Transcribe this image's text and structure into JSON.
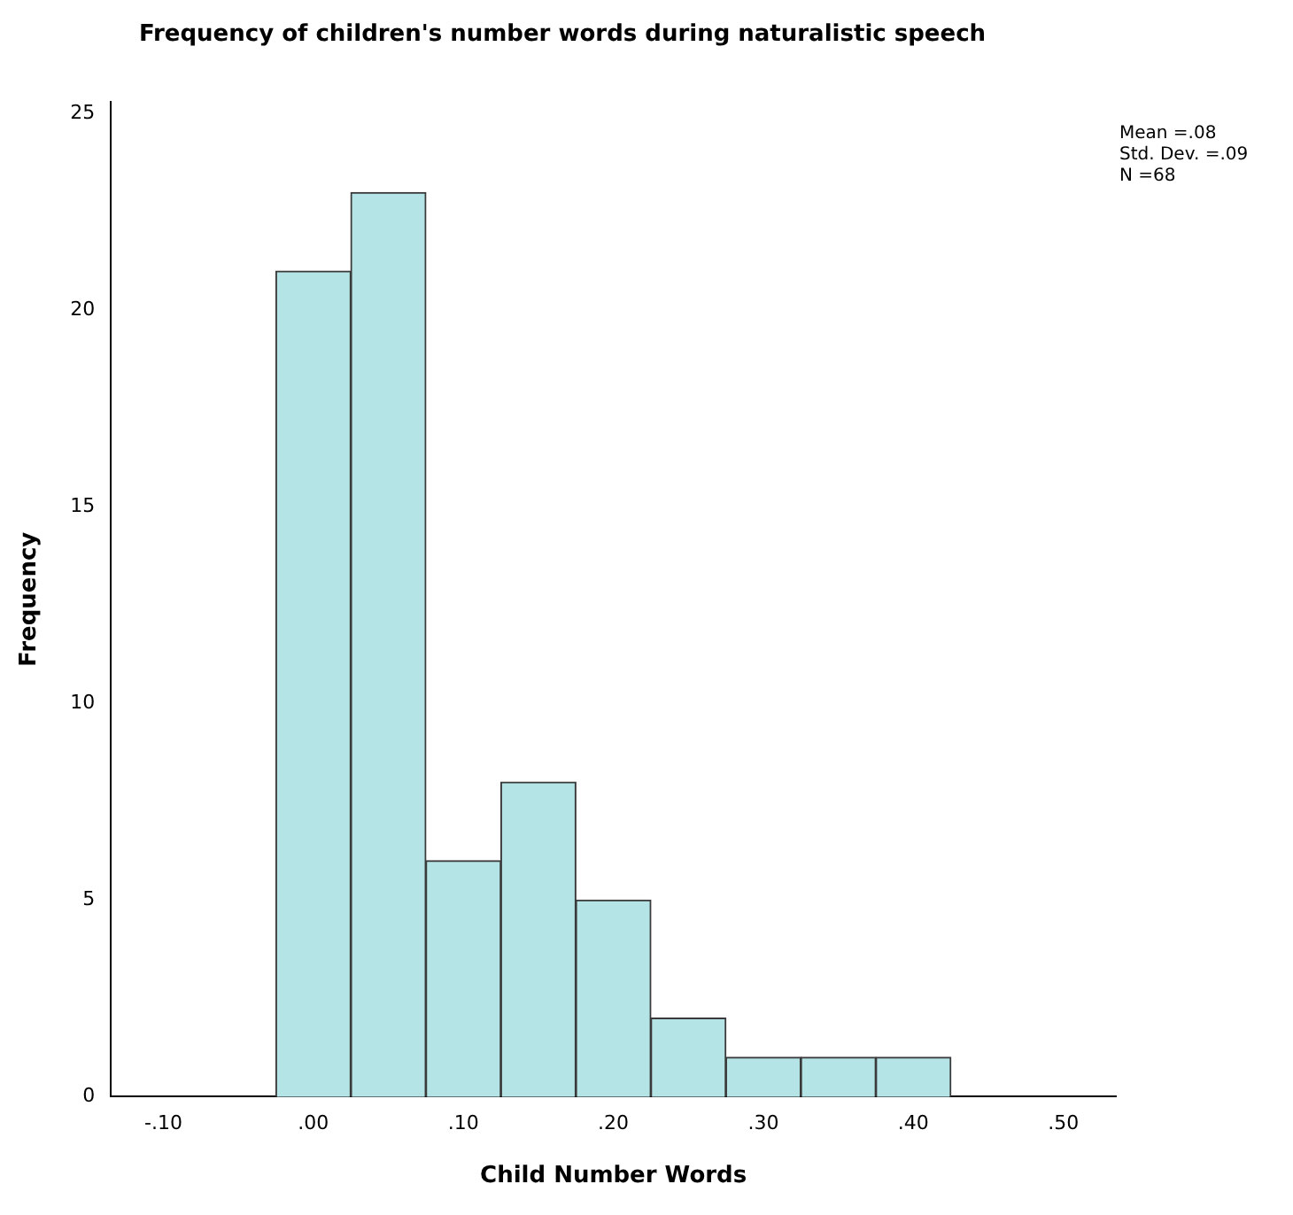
{
  "chart_data": {
    "type": "histogram",
    "title": "Frequency of children's number words during naturalistic speech",
    "xlabel": "Child Number Words",
    "ylabel": "Frequency",
    "bins": [
      -0.025,
      0.025,
      0.075,
      0.125,
      0.175,
      0.225,
      0.275,
      0.325,
      0.375,
      0.425
    ],
    "values": [
      21,
      23,
      6,
      8,
      5,
      2,
      1,
      1,
      1
    ],
    "color": "#b4e4e6",
    "xlim": [
      -0.135,
      0.535
    ],
    "xticks": [
      {
        "value": -0.1,
        "label": "-.10"
      },
      {
        "value": 0,
        "label": ".00"
      },
      {
        "value": 0.1,
        "label": ".10"
      },
      {
        "value": 0.2,
        "label": ".20"
      },
      {
        "value": 0.3,
        "label": ".30"
      },
      {
        "value": 0.4,
        "label": ".40"
      },
      {
        "value": 0.5,
        "label": ".50"
      }
    ],
    "ylim": [
      0,
      25.3
    ],
    "yticks": [
      0,
      5,
      10,
      15,
      20,
      25
    ],
    "grid": false,
    "legend": false,
    "annotations": [
      "Mean =.08",
      "Std. Dev. =.09",
      "N =68"
    ]
  }
}
